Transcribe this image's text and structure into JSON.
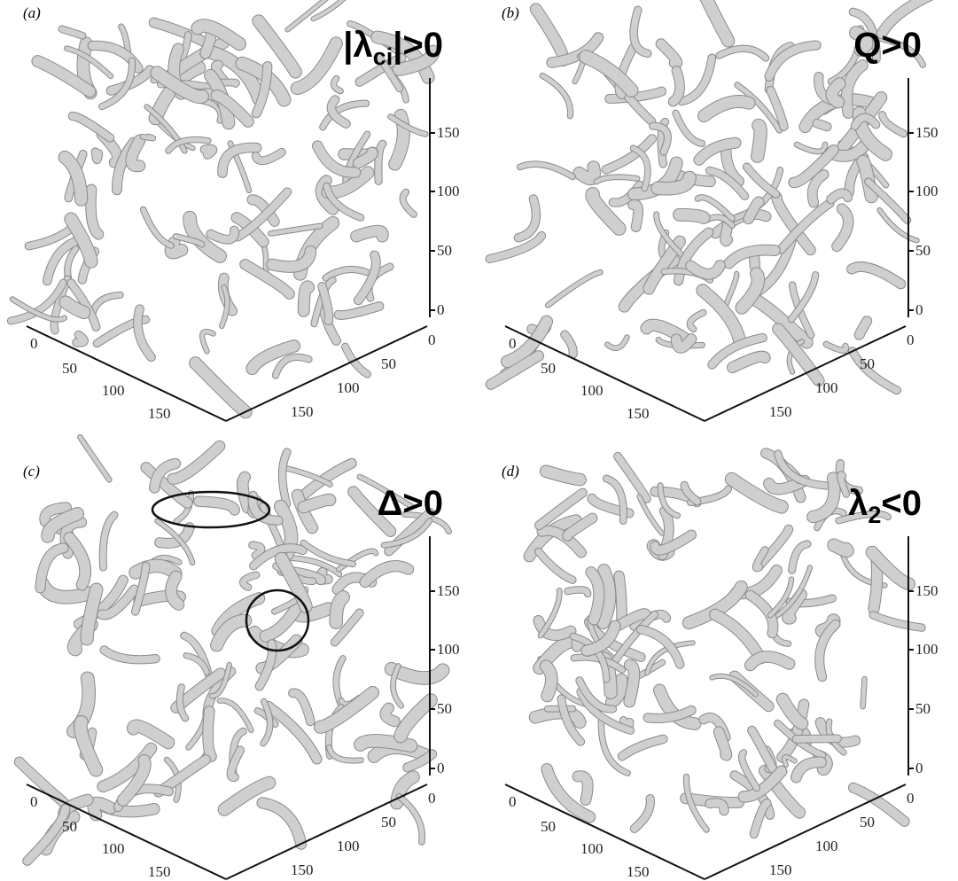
{
  "panels": [
    {
      "label": "(a)",
      "title": {
        "before": "|λ",
        "sub": "ci",
        "after": "|>0"
      },
      "z_ticks": [
        0,
        50,
        100,
        150
      ],
      "x_ticks": [
        0,
        50,
        100,
        150
      ],
      "y_ticks": [
        0,
        50,
        100,
        150
      ]
    },
    {
      "label": "(b)",
      "title": {
        "before": "Q>0"
      },
      "z_ticks": [
        0,
        50,
        100,
        150
      ],
      "x_ticks": [
        0,
        50,
        100,
        150
      ],
      "y_ticks": [
        0,
        50,
        100,
        150
      ]
    },
    {
      "label": "(c)",
      "title": {
        "before": "Δ>0"
      },
      "z_ticks": [
        0,
        50,
        100,
        150
      ],
      "x_ticks": [
        0,
        50,
        100,
        150
      ],
      "y_ticks": [
        0,
        50,
        100,
        150
      ]
    },
    {
      "label": "(d)",
      "title": {
        "before": "λ",
        "sub": "2",
        "after": "<0"
      },
      "z_ticks": [
        0,
        50,
        100,
        150
      ],
      "x_ticks": [
        0,
        50,
        100,
        150
      ],
      "y_ticks": [
        0,
        50,
        100,
        150
      ]
    }
  ]
}
